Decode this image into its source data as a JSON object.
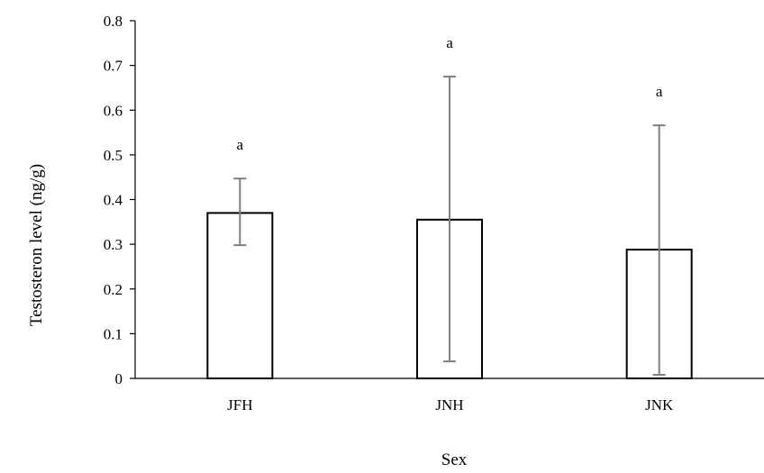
{
  "chart_data": {
    "type": "bar",
    "title": "",
    "xlabel": "Sex",
    "ylabel": "Testosteron level (ng/g)",
    "ylim": [
      0,
      0.8
    ],
    "yticks": [
      "0",
      "0.1",
      "0.2",
      "0.3",
      "0.4",
      "0.5",
      "0.6",
      "0.7",
      "0.8"
    ],
    "categories": [
      "JFH",
      "JNH",
      "JNK"
    ],
    "values": [
      0.37,
      0.355,
      0.288
    ],
    "error_low": [
      0.298,
      0.038,
      0.008
    ],
    "error_high": [
      0.447,
      0.675,
      0.566
    ],
    "significance_labels": [
      "a",
      "a",
      "a"
    ],
    "grid": false,
    "legend": "none",
    "colors": {
      "bar_fill": "#ffffff",
      "bar_stroke": "#000000",
      "error_bar": "#7f7f7f",
      "axis": "#000000"
    }
  }
}
